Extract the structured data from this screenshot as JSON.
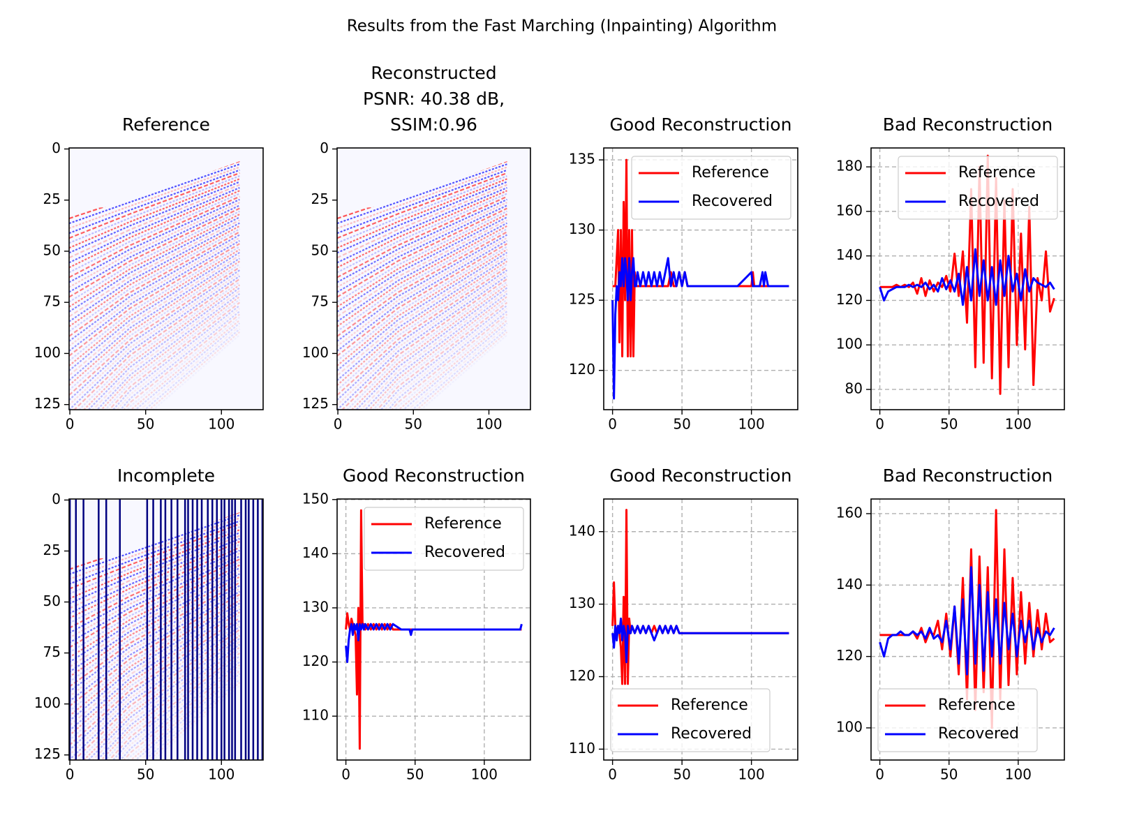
{
  "title": "Results from the Fast Marching (Inpainting) Algorithm",
  "chart_data": [
    {
      "type": "image",
      "title": "Reference",
      "xlim": [
        -0.5,
        127.5
      ],
      "ylim": [
        127.5,
        -0.5
      ],
      "xticks": [
        0,
        50,
        100
      ],
      "yticks": [
        0,
        25,
        50,
        75,
        100,
        125
      ]
    },
    {
      "type": "image",
      "title": [
        "Reconstructed",
        " PSNR: 40.38 dB,",
        " SSIM:0.96"
      ],
      "xlim": [
        -0.5,
        127.5
      ],
      "ylim": [
        127.5,
        -0.5
      ],
      "xticks": [
        0,
        50,
        100
      ],
      "yticks": [
        0,
        25,
        50,
        75,
        100,
        125
      ]
    },
    {
      "type": "line",
      "title": "Good Reconstruction",
      "xlim": [
        -6.35,
        133.35
      ],
      "ylim": [
        117.2,
        135.85
      ],
      "xticks": [
        0,
        50,
        100
      ],
      "yticks": [
        120,
        125,
        130,
        135
      ],
      "grid": true,
      "legend": "upper right",
      "x": [
        0,
        1,
        2,
        3,
        4,
        5,
        6,
        7,
        8,
        9,
        10,
        11,
        12,
        13,
        14,
        15,
        16,
        17,
        18,
        20,
        22,
        24,
        26,
        28,
        30,
        32,
        34,
        36,
        38,
        40,
        42,
        44,
        46,
        48,
        50,
        52,
        54,
        56,
        60,
        70,
        80,
        90,
        100,
        101,
        102,
        104,
        106,
        108,
        109,
        110,
        112,
        120,
        127
      ],
      "series": [
        {
          "name": "Reference",
          "color": "#ff0000",
          "values": [
            126,
            126,
            126,
            128,
            130,
            122,
            130,
            121,
            132,
            125,
            135,
            121,
            130,
            121,
            130,
            121,
            127,
            126,
            126,
            126,
            126,
            126,
            126,
            126,
            126,
            126,
            126,
            126,
            126,
            126,
            127,
            126,
            126,
            127,
            126,
            127,
            126,
            126,
            126,
            126,
            126,
            126,
            126,
            127,
            126,
            126,
            126,
            126,
            126,
            126,
            126,
            126,
            126
          ]
        },
        {
          "name": "Recovered",
          "color": "#0000ff",
          "values": [
            125,
            118,
            124,
            126,
            125,
            127,
            126,
            128,
            126,
            128,
            127,
            125,
            128,
            125,
            127,
            128,
            126,
            126,
            127,
            126,
            127,
            126,
            127,
            126,
            127,
            126,
            127,
            126,
            127,
            128,
            126,
            127,
            126,
            127,
            126,
            127,
            126,
            126,
            126,
            126,
            126,
            126,
            127,
            126,
            126,
            126,
            126,
            127,
            126,
            127,
            126,
            126,
            126
          ]
        }
      ]
    },
    {
      "type": "line",
      "title": "Bad Reconstruction",
      "xlim": [
        -6.35,
        133.35
      ],
      "ylim": [
        70.9,
        188.5
      ],
      "xticks": [
        0,
        50,
        100
      ],
      "yticks": [
        80,
        100,
        120,
        140,
        160,
        180
      ],
      "grid": true,
      "legend": "upper right",
      "x": [
        0,
        3,
        6,
        9,
        12,
        15,
        18,
        21,
        24,
        27,
        30,
        33,
        36,
        39,
        42,
        45,
        48,
        51,
        54,
        57,
        60,
        63,
        66,
        69,
        72,
        75,
        78,
        81,
        84,
        87,
        90,
        93,
        96,
        99,
        102,
        105,
        108,
        111,
        114,
        117,
        120,
        123,
        126
      ],
      "series": [
        {
          "name": "Reference",
          "color": "#ff0000",
          "values": [
            126,
            126,
            126,
            126,
            127,
            126,
            127,
            126,
            128,
            123,
            130,
            122,
            129,
            124,
            128,
            126,
            131,
            124,
            141,
            122,
            142,
            110,
            170,
            90,
            180,
            92,
            185,
            85,
            175,
            78,
            165,
            90,
            170,
            100,
            150,
            98,
            162,
            82,
            130,
            120,
            142,
            115,
            121
          ]
        },
        {
          "name": "Recovered",
          "color": "#0000ff",
          "values": [
            126,
            120,
            124,
            125,
            126,
            126,
            126,
            127,
            126,
            127,
            126,
            128,
            125,
            127,
            124,
            130,
            125,
            129,
            124,
            132,
            118,
            135,
            120,
            143,
            122,
            138,
            120,
            135,
            118,
            138,
            122,
            140,
            124,
            132,
            120,
            134,
            124,
            130,
            128,
            127,
            126,
            128,
            125
          ]
        }
      ]
    },
    {
      "type": "image",
      "title": "Incomplete",
      "xlim": [
        -0.5,
        127.5
      ],
      "ylim": [
        127.5,
        -0.5
      ],
      "xticks": [
        0,
        50,
        100
      ],
      "yticks": [
        0,
        25,
        50,
        75,
        100,
        125
      ],
      "vline_color": "#000080",
      "vlines": [
        0,
        4,
        9,
        19,
        24,
        33,
        51,
        55,
        60,
        63,
        67,
        71,
        76,
        78,
        81,
        84,
        87,
        91,
        94,
        97,
        100,
        102,
        105,
        107,
        109,
        113,
        116,
        118,
        121,
        124,
        127
      ]
    },
    {
      "type": "line",
      "title": "Good Reconstruction",
      "xlim": [
        -6.35,
        133.35
      ],
      "ylim": [
        101.9,
        150.1
      ],
      "xticks": [
        0,
        50,
        100
      ],
      "yticks": [
        110,
        120,
        130,
        140,
        150
      ],
      "grid": true,
      "legend": "upper right",
      "x": [
        0,
        1,
        2,
        3,
        4,
        5,
        6,
        7,
        8,
        9,
        10,
        11,
        12,
        13,
        14,
        16,
        18,
        20,
        22,
        24,
        26,
        28,
        30,
        32,
        34,
        40,
        46,
        47,
        48,
        60,
        80,
        100,
        120,
        126,
        127
      ],
      "series": [
        {
          "name": "Reference",
          "color": "#ff0000",
          "values": [
            126,
            129,
            127,
            126,
            128,
            127,
            126,
            125,
            114,
            130,
            104,
            148,
            127,
            127,
            126,
            127,
            126,
            127,
            126,
            127,
            126,
            127,
            126,
            127,
            126,
            126,
            126,
            126,
            126,
            126,
            126,
            126,
            126,
            126,
            126
          ]
        },
        {
          "name": "Recovered",
          "color": "#0000ff",
          "values": [
            123,
            120,
            124,
            126,
            127,
            125,
            127,
            126,
            127,
            124,
            127,
            126,
            127,
            126,
            127,
            126,
            127,
            126,
            127,
            126,
            127,
            126,
            127,
            126,
            127,
            126,
            126,
            125,
            126,
            126,
            126,
            126,
            126,
            126,
            127
          ]
        }
      ]
    },
    {
      "type": "line",
      "title": "Good Reconstruction",
      "xlim": [
        -6.35,
        133.35
      ],
      "ylim": [
        108.5,
        144.5
      ],
      "xticks": [
        0,
        50,
        100
      ],
      "yticks": [
        110,
        120,
        130,
        140
      ],
      "grid": true,
      "legend": "lower left",
      "x": [
        0,
        1,
        2,
        3,
        4,
        5,
        6,
        7,
        8,
        9,
        10,
        11,
        12,
        13,
        14,
        16,
        18,
        20,
        22,
        24,
        26,
        28,
        30,
        32,
        34,
        36,
        38,
        40,
        42,
        44,
        46,
        48,
        50,
        60,
        80,
        100,
        127
      ],
      "series": [
        {
          "name": "Reference",
          "color": "#ff0000",
          "values": [
            127,
            133,
            127,
            126,
            127,
            126,
            124,
            119,
            131,
            119,
            143,
            119,
            128,
            126,
            127,
            126,
            127,
            126,
            127,
            126,
            127,
            126,
            127,
            126,
            127,
            126,
            127,
            126,
            127,
            126,
            127,
            126,
            126,
            126,
            126,
            126,
            126
          ]
        },
        {
          "name": "Recovered",
          "color": "#0000ff",
          "values": [
            126,
            124,
            127,
            125,
            127,
            126,
            128,
            125,
            127,
            126,
            122,
            127,
            126,
            126,
            127,
            126,
            127,
            126,
            127,
            126,
            127,
            126,
            125,
            126,
            127,
            126,
            127,
            126,
            127,
            126,
            127,
            126,
            126,
            126,
            126,
            126,
            126
          ]
        }
      ]
    },
    {
      "type": "line",
      "title": "Bad Reconstruction",
      "xlim": [
        -6.35,
        133.35
      ],
      "ylim": [
        91.0,
        164.1
      ],
      "xticks": [
        0,
        50,
        100
      ],
      "yticks": [
        100,
        120,
        140,
        160
      ],
      "grid": true,
      "legend": "lower left",
      "x": [
        0,
        3,
        6,
        9,
        12,
        15,
        18,
        21,
        24,
        27,
        30,
        33,
        36,
        39,
        42,
        45,
        48,
        51,
        54,
        57,
        60,
        63,
        66,
        69,
        72,
        75,
        78,
        81,
        84,
        87,
        90,
        93,
        96,
        99,
        102,
        105,
        108,
        111,
        114,
        117,
        120,
        123,
        126
      ],
      "series": [
        {
          "name": "Reference",
          "color": "#ff0000",
          "values": [
            126,
            126,
            126,
            126,
            126,
            126,
            126,
            126,
            127,
            125,
            128,
            124,
            127,
            126,
            130,
            122,
            132,
            120,
            134,
            115,
            142,
            108,
            150,
            105,
            148,
            110,
            145,
            100,
            161,
            108,
            150,
            112,
            142,
            115,
            138,
            118,
            135,
            120,
            133,
            122,
            132,
            124,
            125
          ]
        },
        {
          "name": "Recovered",
          "color": "#0000ff",
          "values": [
            124,
            120,
            125,
            126,
            126,
            127,
            126,
            126,
            127,
            126,
            127,
            125,
            128,
            125,
            126,
            124,
            130,
            122,
            134,
            118,
            136,
            115,
            145,
            118,
            140,
            116,
            138,
            120,
            136,
            118,
            135,
            122,
            132,
            120,
            130,
            124,
            130,
            122,
            128,
            124,
            127,
            126,
            128
          ]
        }
      ]
    }
  ]
}
